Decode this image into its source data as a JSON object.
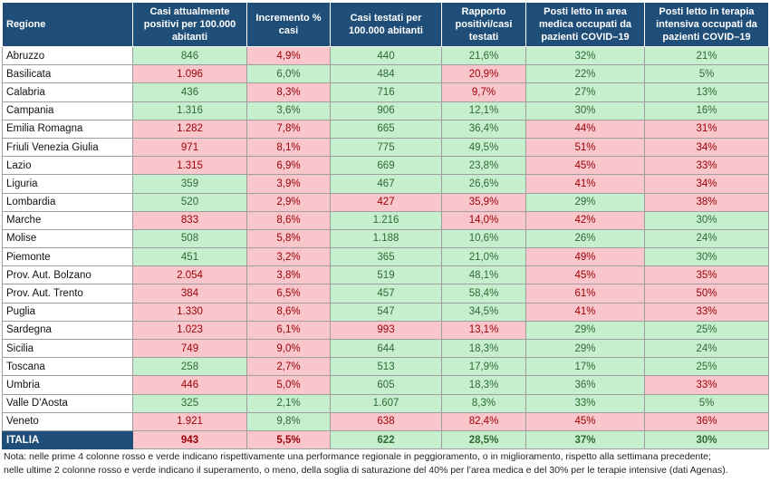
{
  "colors": {
    "header_bg": "#1f4e79",
    "red_bg": "#f8c6cb",
    "green_bg": "#c6efce"
  },
  "headers": [
    "Regione",
    "Casi attualmente positivi per 100.000 abitanti",
    "Incremento % casi",
    "Casi testati per 100.000 abitanti",
    "Rapporto positivi/casi testati",
    "Posti letto in area medica occupati da pazienti COVID–19",
    "Posti letto in terapia intensiva occupati da pazienti COVID–19"
  ],
  "rows": [
    {
      "region": "Abruzzo",
      "cells": [
        [
          "846",
          "green"
        ],
        [
          "4,9%",
          "red"
        ],
        [
          "440",
          "green"
        ],
        [
          "21,6%",
          "green"
        ],
        [
          "32%",
          "green"
        ],
        [
          "21%",
          "green"
        ]
      ]
    },
    {
      "region": "Basilicata",
      "cells": [
        [
          "1.096",
          "red"
        ],
        [
          "6,0%",
          "green"
        ],
        [
          "484",
          "green"
        ],
        [
          "20,9%",
          "red"
        ],
        [
          "22%",
          "green"
        ],
        [
          "5%",
          "green"
        ]
      ]
    },
    {
      "region": "Calabria",
      "cells": [
        [
          "436",
          "green"
        ],
        [
          "8,3%",
          "red"
        ],
        [
          "716",
          "green"
        ],
        [
          "9,7%",
          "red"
        ],
        [
          "27%",
          "green"
        ],
        [
          "13%",
          "green"
        ]
      ]
    },
    {
      "region": "Campania",
      "cells": [
        [
          "1.316",
          "green"
        ],
        [
          "3,6%",
          "green"
        ],
        [
          "906",
          "green"
        ],
        [
          "12,1%",
          "green"
        ],
        [
          "30%",
          "green"
        ],
        [
          "16%",
          "green"
        ]
      ]
    },
    {
      "region": "Emilia Romagna",
      "cells": [
        [
          "1.282",
          "red"
        ],
        [
          "7,8%",
          "red"
        ],
        [
          "665",
          "green"
        ],
        [
          "36,4%",
          "green"
        ],
        [
          "44%",
          "red"
        ],
        [
          "31%",
          "red"
        ]
      ]
    },
    {
      "region": "Friuli Venezia Giulia",
      "cells": [
        [
          "971",
          "red"
        ],
        [
          "8,1%",
          "red"
        ],
        [
          "775",
          "green"
        ],
        [
          "49,5%",
          "green"
        ],
        [
          "51%",
          "red"
        ],
        [
          "34%",
          "red"
        ]
      ]
    },
    {
      "region": "Lazio",
      "cells": [
        [
          "1.315",
          "red"
        ],
        [
          "6,9%",
          "red"
        ],
        [
          "669",
          "green"
        ],
        [
          "23,8%",
          "green"
        ],
        [
          "45%",
          "red"
        ],
        [
          "33%",
          "red"
        ]
      ]
    },
    {
      "region": "Liguria",
      "cells": [
        [
          "359",
          "green"
        ],
        [
          "3,9%",
          "red"
        ],
        [
          "467",
          "green"
        ],
        [
          "26,6%",
          "green"
        ],
        [
          "41%",
          "red"
        ],
        [
          "34%",
          "red"
        ]
      ]
    },
    {
      "region": "Lombardia",
      "cells": [
        [
          "520",
          "green"
        ],
        [
          "2,9%",
          "red"
        ],
        [
          "427",
          "red"
        ],
        [
          "35,9%",
          "red"
        ],
        [
          "29%",
          "green"
        ],
        [
          "38%",
          "red"
        ]
      ]
    },
    {
      "region": "Marche",
      "cells": [
        [
          "833",
          "red"
        ],
        [
          "8,6%",
          "red"
        ],
        [
          "1.216",
          "green"
        ],
        [
          "14,0%",
          "red"
        ],
        [
          "42%",
          "red"
        ],
        [
          "30%",
          "green"
        ]
      ]
    },
    {
      "region": "Molise",
      "cells": [
        [
          "508",
          "green"
        ],
        [
          "5,8%",
          "red"
        ],
        [
          "1.188",
          "green"
        ],
        [
          "10,6%",
          "green"
        ],
        [
          "26%",
          "green"
        ],
        [
          "24%",
          "green"
        ]
      ]
    },
    {
      "region": "Piemonte",
      "cells": [
        [
          "451",
          "green"
        ],
        [
          "3,2%",
          "red"
        ],
        [
          "365",
          "green"
        ],
        [
          "21,0%",
          "green"
        ],
        [
          "49%",
          "red"
        ],
        [
          "30%",
          "green"
        ]
      ]
    },
    {
      "region": "Prov. Aut. Bolzano",
      "cells": [
        [
          "2.054",
          "red"
        ],
        [
          "3,8%",
          "red"
        ],
        [
          "519",
          "green"
        ],
        [
          "48,1%",
          "green"
        ],
        [
          "45%",
          "red"
        ],
        [
          "35%",
          "red"
        ]
      ]
    },
    {
      "region": "Prov. Aut. Trento",
      "cells": [
        [
          "384",
          "red"
        ],
        [
          "6,5%",
          "red"
        ],
        [
          "457",
          "green"
        ],
        [
          "58,4%",
          "green"
        ],
        [
          "61%",
          "red"
        ],
        [
          "50%",
          "red"
        ]
      ]
    },
    {
      "region": "Puglia",
      "cells": [
        [
          "1.330",
          "red"
        ],
        [
          "8,6%",
          "red"
        ],
        [
          "547",
          "green"
        ],
        [
          "34,5%",
          "green"
        ],
        [
          "41%",
          "red"
        ],
        [
          "33%",
          "red"
        ]
      ]
    },
    {
      "region": "Sardegna",
      "cells": [
        [
          "1.023",
          "red"
        ],
        [
          "6,1%",
          "red"
        ],
        [
          "993",
          "red"
        ],
        [
          "13,1%",
          "red"
        ],
        [
          "29%",
          "green"
        ],
        [
          "25%",
          "green"
        ]
      ]
    },
    {
      "region": "Sicilia",
      "cells": [
        [
          "749",
          "red"
        ],
        [
          "9,0%",
          "red"
        ],
        [
          "644",
          "green"
        ],
        [
          "18,3%",
          "green"
        ],
        [
          "29%",
          "green"
        ],
        [
          "24%",
          "green"
        ]
      ]
    },
    {
      "region": "Toscana",
      "cells": [
        [
          "258",
          "green"
        ],
        [
          "2,7%",
          "red"
        ],
        [
          "513",
          "green"
        ],
        [
          "17,9%",
          "green"
        ],
        [
          "17%",
          "green"
        ],
        [
          "25%",
          "green"
        ]
      ]
    },
    {
      "region": "Umbria",
      "cells": [
        [
          "446",
          "red"
        ],
        [
          "5,0%",
          "red"
        ],
        [
          "605",
          "green"
        ],
        [
          "18,3%",
          "green"
        ],
        [
          "36%",
          "green"
        ],
        [
          "33%",
          "red"
        ]
      ]
    },
    {
      "region": "Valle D'Aosta",
      "cells": [
        [
          "325",
          "green"
        ],
        [
          "2,1%",
          "green"
        ],
        [
          "1.607",
          "green"
        ],
        [
          "8,3%",
          "green"
        ],
        [
          "33%",
          "green"
        ],
        [
          "5%",
          "green"
        ]
      ]
    },
    {
      "region": "Veneto",
      "cells": [
        [
          "1.921",
          "red"
        ],
        [
          "9,8%",
          "green"
        ],
        [
          "638",
          "red"
        ],
        [
          "82,4%",
          "red"
        ],
        [
          "45%",
          "red"
        ],
        [
          "36%",
          "red"
        ]
      ]
    }
  ],
  "total": {
    "region": "ITALIA",
    "cells": [
      [
        "943",
        "red"
      ],
      [
        "5,5%",
        "red"
      ],
      [
        "622",
        "green"
      ],
      [
        "28,5%",
        "green"
      ],
      [
        "37%",
        "green"
      ],
      [
        "30%",
        "green"
      ]
    ]
  },
  "note": {
    "line1": "Nota: nelle prime 4 colonne rosso e verde indicano rispettivamente una performance regionale in peggioramento, o in miglioramento, rispetto alla settimana precedente;",
    "line2": "nelle ultime 2 colonne rosso e verde indicano il superamento, o meno, della soglia di saturazione del 40% per l’area medica e del 30% per le terapie intensive (dati Agenas)."
  }
}
